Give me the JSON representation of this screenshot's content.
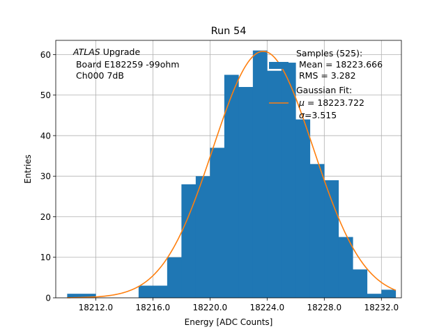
{
  "chart_data": {
    "type": "bar",
    "title": "Run 54",
    "xlabel": "Energy [ADC Counts]",
    "ylabel": "Entries",
    "xlim": [
      18209.2,
      18233.4
    ],
    "ylim": [
      0,
      63.5
    ],
    "grid": true,
    "x_ticks": [
      18212.0,
      18216.0,
      18220.0,
      18224.0,
      18228.0,
      18232.0
    ],
    "x_tick_labels": [
      "18212.0",
      "18216.0",
      "18220.0",
      "18224.0",
      "18228.0",
      "18232.0"
    ],
    "y_ticks": [
      0,
      10,
      20,
      30,
      40,
      50,
      60
    ],
    "y_tick_labels": [
      "0",
      "10",
      "20",
      "30",
      "40",
      "50",
      "60"
    ],
    "bar_color": "#1f77b4",
    "fit_color": "#ff7f0e",
    "bins": [
      {
        "x0": 18210.0,
        "x1": 18212.0,
        "count": 1
      },
      {
        "x0": 18212.0,
        "x1": 18214.0,
        "count": 0
      },
      {
        "x0": 18214.0,
        "x1": 18215.0,
        "count": 0
      },
      {
        "x0": 18215.0,
        "x1": 18217.0,
        "count": 3
      },
      {
        "x0": 18217.0,
        "x1": 18218.0,
        "count": 10
      },
      {
        "x0": 18218.0,
        "x1": 18219.0,
        "count": 28
      },
      {
        "x0": 18219.0,
        "x1": 18220.0,
        "count": 30
      },
      {
        "x0": 18220.0,
        "x1": 18221.0,
        "count": 37
      },
      {
        "x0": 18221.0,
        "x1": 18222.0,
        "count": 55
      },
      {
        "x0": 18222.0,
        "x1": 18223.0,
        "count": 52
      },
      {
        "x0": 18223.0,
        "x1": 18224.0,
        "count": 61
      },
      {
        "x0": 18224.0,
        "x1": 18225.0,
        "count": 56
      },
      {
        "x0": 18225.0,
        "x1": 18226.0,
        "count": 58
      },
      {
        "x0": 18226.0,
        "x1": 18227.0,
        "count": 44
      },
      {
        "x0": 18227.0,
        "x1": 18228.0,
        "count": 33
      },
      {
        "x0": 18228.0,
        "x1": 18229.0,
        "count": 29
      },
      {
        "x0": 18229.0,
        "x1": 18230.0,
        "count": 15
      },
      {
        "x0": 18230.0,
        "x1": 18231.0,
        "count": 7
      },
      {
        "x0": 18231.0,
        "x1": 18232.0,
        "count": 1
      },
      {
        "x0": 18232.0,
        "x1": 18233.0,
        "count": 2
      }
    ],
    "gaussian_fit": {
      "mu": 18223.722,
      "sigma": 3.515,
      "amplitude": 60.8,
      "x_range": [
        18210.0,
        18233.0
      ]
    },
    "annotations": {
      "atlas_label": "ATLAS",
      "atlas_suffix": " Upgrade",
      "board_line": " Board E182259 -99ohm",
      "channel_line": " Ch000 7dB"
    },
    "legend": {
      "placement": "top-right",
      "samples_lines": [
        "Samples (525):",
        " Mean = 18223.666",
        " RMS = 3.282"
      ],
      "fit_header": "Gaussian Fit:",
      "mu_symbol": "μ",
      "mu_value": " = 18223.722",
      "sigma_symbol": "σ",
      "sigma_value": "=3.515"
    }
  }
}
